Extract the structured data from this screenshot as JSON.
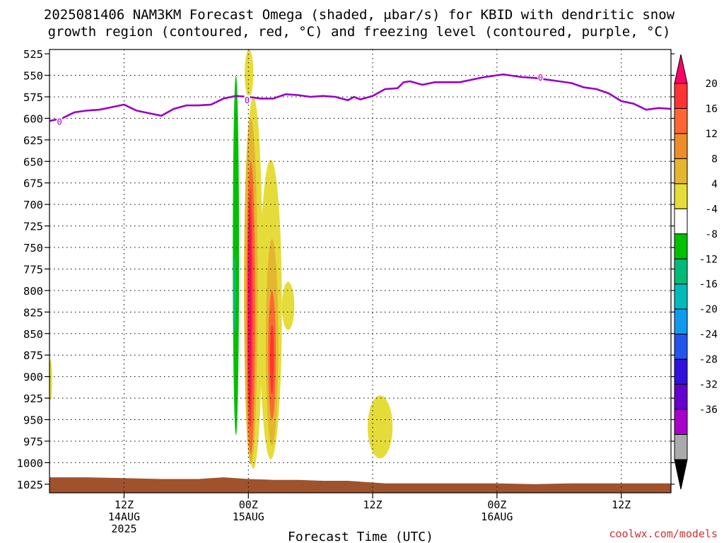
{
  "chart_data": {
    "type": "heatmap",
    "title_line1": "2025081406 NAM3KM Forecast Omega (shaded, μbar/s) for KBID with dendritic snow",
    "title_line2": "growth region (contoured, red, °C) and freezing level (contoured, purple, °C)",
    "xlabel": "Forecast Time (UTC)",
    "credit": "coolwx.com/models",
    "y_axis": {
      "ticks": [
        525,
        550,
        575,
        600,
        625,
        650,
        675,
        700,
        725,
        750,
        775,
        800,
        825,
        850,
        875,
        900,
        925,
        950,
        975,
        1000,
        1025
      ],
      "range": [
        520,
        1035
      ],
      "reversed": true,
      "unit": "hPa"
    },
    "x_axis": {
      "range": [
        6,
        56
      ],
      "ticks": [
        {
          "x": 12,
          "lines": [
            "12Z",
            "14AUG",
            "2025"
          ]
        },
        {
          "x": 22,
          "lines": [
            "00Z",
            "15AUG"
          ]
        },
        {
          "x": 32,
          "lines": [
            "12Z"
          ]
        },
        {
          "x": 42,
          "lines": [
            "00Z",
            "16AUG"
          ]
        },
        {
          "x": 52,
          "lines": [
            "12Z"
          ]
        }
      ],
      "grid": true
    },
    "colorbar": {
      "labels": [
        "20",
        "16",
        "12",
        "8",
        "4",
        "-4",
        "-8",
        "-12",
        "-16",
        "-20",
        "-24",
        "-28",
        "-32",
        "-36"
      ],
      "colors": [
        "#ff0066",
        "#ff3333",
        "#ff6633",
        "#ee8c2c",
        "#e4b630",
        "#e5dc3a",
        "#ffffff",
        "#00c000",
        "#00bb77",
        "#00bbbb",
        "#1199ee",
        "#2255ee",
        "#3311dd",
        "#6600cc",
        "#aa00cc",
        "#aaaaaa",
        "#000000"
      ]
    },
    "freezing_level": {
      "label": "0",
      "color": "#9a00c8",
      "points": [
        [
          6,
          603
        ],
        [
          7,
          600
        ],
        [
          8,
          593
        ],
        [
          9,
          591
        ],
        [
          10,
          590
        ],
        [
          11,
          587
        ],
        [
          12,
          584
        ],
        [
          13,
          591
        ],
        [
          14,
          594
        ],
        [
          15,
          597
        ],
        [
          16,
          589
        ],
        [
          17,
          585
        ],
        [
          18,
          585
        ],
        [
          19,
          584
        ],
        [
          20,
          577
        ],
        [
          21,
          574
        ],
        [
          22,
          575
        ],
        [
          23,
          577
        ],
        [
          24,
          577
        ],
        [
          25,
          572
        ],
        [
          26,
          573
        ],
        [
          27,
          575
        ],
        [
          28,
          574
        ],
        [
          29,
          575
        ],
        [
          30,
          579
        ],
        [
          30.5,
          575
        ],
        [
          31,
          578
        ],
        [
          32,
          574
        ],
        [
          33,
          566
        ],
        [
          34,
          565
        ],
        [
          34.5,
          558
        ],
        [
          35,
          557
        ],
        [
          36,
          561
        ],
        [
          37,
          558
        ],
        [
          38,
          558
        ],
        [
          39,
          558
        ],
        [
          40,
          555
        ],
        [
          41,
          552
        ],
        [
          42,
          550
        ],
        [
          42.5,
          549
        ],
        [
          43,
          550
        ],
        [
          44,
          552
        ],
        [
          45,
          553
        ],
        [
          46,
          555
        ],
        [
          47,
          557
        ],
        [
          48,
          559
        ],
        [
          49,
          564
        ],
        [
          50,
          566
        ],
        [
          51,
          571
        ],
        [
          52,
          580
        ],
        [
          53,
          583
        ],
        [
          54,
          590
        ],
        [
          55,
          588
        ],
        [
          56,
          589
        ]
      ]
    },
    "freezing_level_label_positions": [
      [
        6.8,
        604
      ],
      [
        21.9,
        579
      ],
      [
        45.5,
        553
      ]
    ],
    "omega_features": [
      {
        "sign": "positive",
        "value_range": [
          4,
          8
        ],
        "x_center": 22.05,
        "x_halfwidth": 0.35,
        "p_top": 520,
        "p_bottom": 575
      },
      {
        "sign": "positive",
        "value_range": [
          4,
          8
        ],
        "x_center": 22.4,
        "x_halfwidth": 0.75,
        "p_top": 575,
        "p_bottom": 1007
      },
      {
        "sign": "positive",
        "value_range": [
          8,
          12
        ],
        "x_center": 22.2,
        "x_halfwidth": 0.55,
        "p_top": 600,
        "p_bottom": 1002
      },
      {
        "sign": "positive",
        "value_range": [
          12,
          16
        ],
        "x_center": 22.2,
        "x_halfwidth": 0.35,
        "p_top": 650,
        "p_bottom": 990
      },
      {
        "sign": "positive",
        "value_range": [
          16,
          20
        ],
        "x_center": 22.15,
        "x_halfwidth": 0.2,
        "p_top": 680,
        "p_bottom": 960
      },
      {
        "sign": "positive",
        "value_range": [
          20,
          24
        ],
        "x_center": 22.1,
        "x_halfwidth": 0.08,
        "p_top": 700,
        "p_bottom": 940
      },
      {
        "sign": "positive",
        "value_range": [
          4,
          8
        ],
        "x_center": 23.8,
        "x_halfwidth": 0.9,
        "p_top": 648,
        "p_bottom": 996
      },
      {
        "sign": "positive",
        "value_range": [
          8,
          12
        ],
        "x_center": 23.9,
        "x_halfwidth": 0.5,
        "p_top": 740,
        "p_bottom": 980
      },
      {
        "sign": "positive",
        "value_range": [
          12,
          16
        ],
        "x_center": 23.9,
        "x_halfwidth": 0.3,
        "p_top": 800,
        "p_bottom": 950
      },
      {
        "sign": "positive",
        "value_range": [
          16,
          20
        ],
        "x_center": 23.9,
        "x_halfwidth": 0.15,
        "p_top": 840,
        "p_bottom": 920
      },
      {
        "sign": "positive",
        "value_range": [
          4,
          8
        ],
        "x_center": 25.2,
        "x_halfwidth": 0.5,
        "p_top": 790,
        "p_bottom": 846
      },
      {
        "sign": "positive",
        "value_range": [
          4,
          8
        ],
        "x_center": 32.6,
        "x_halfwidth": 1.0,
        "p_top": 922,
        "p_bottom": 995
      },
      {
        "sign": "positive",
        "value_range": [
          4,
          8
        ],
        "x_center": 6.1,
        "x_halfwidth": 0.1,
        "p_top": 880,
        "p_bottom": 928
      },
      {
        "sign": "negative",
        "value_range": [
          -8,
          -4
        ],
        "x_center": 21.0,
        "x_halfwidth": 0.25,
        "p_top": 550,
        "p_bottom": 968
      },
      {
        "sign": "negative",
        "value_range": [
          -12,
          -8
        ],
        "x_center": 20.9,
        "x_halfwidth": 0.12,
        "p_top": 760,
        "p_bottom": 850
      }
    ],
    "terrain": {
      "color": "#a0522d",
      "points": [
        [
          6,
          1017
        ],
        [
          9,
          1017
        ],
        [
          12,
          1018
        ],
        [
          15,
          1019
        ],
        [
          18,
          1019
        ],
        [
          19,
          1018
        ],
        [
          20,
          1017
        ],
        [
          21,
          1018
        ],
        [
          22,
          1019
        ],
        [
          24,
          1020
        ],
        [
          26,
          1020
        ],
        [
          28,
          1021
        ],
        [
          30,
          1021
        ],
        [
          31,
          1022
        ],
        [
          33,
          1024
        ],
        [
          36,
          1024
        ],
        [
          39,
          1024
        ],
        [
          42,
          1024
        ],
        [
          45,
          1025
        ],
        [
          48,
          1024
        ],
        [
          52,
          1024
        ],
        [
          56,
          1024
        ]
      ]
    }
  }
}
